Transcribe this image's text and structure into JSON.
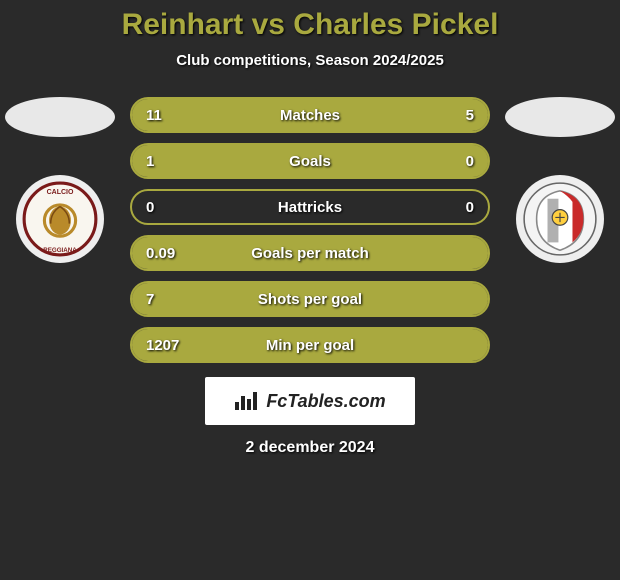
{
  "title": "Reinhart vs Charles Pickel",
  "subtitle": "Club competitions, Season 2024/2025",
  "colors": {
    "accent": "#a9a93f",
    "background": "#2a2a2a",
    "text": "#ffffff",
    "brand_bg": "#ffffff",
    "brand_text": "#222222"
  },
  "stats": [
    {
      "label": "Matches",
      "left_val": "11",
      "right_val": "5",
      "left_pct": 68,
      "right_pct": 32
    },
    {
      "label": "Goals",
      "left_val": "1",
      "right_val": "0",
      "left_pct": 100,
      "right_pct": 12
    },
    {
      "label": "Hattricks",
      "left_val": "0",
      "right_val": "0",
      "left_pct": 0,
      "right_pct": 0
    },
    {
      "label": "Goals per match",
      "left_val": "0.09",
      "right_val": "",
      "left_pct": 100,
      "right_pct": 0
    },
    {
      "label": "Shots per goal",
      "left_val": "7",
      "right_val": "",
      "left_pct": 100,
      "right_pct": 0
    },
    {
      "label": "Min per goal",
      "left_val": "1207",
      "right_val": "",
      "left_pct": 100,
      "right_pct": 0
    }
  ],
  "brand": "FcTables.com",
  "date": "2 december 2024",
  "left_crest_alt": "Reggiana",
  "right_crest_alt": "Cremonese"
}
